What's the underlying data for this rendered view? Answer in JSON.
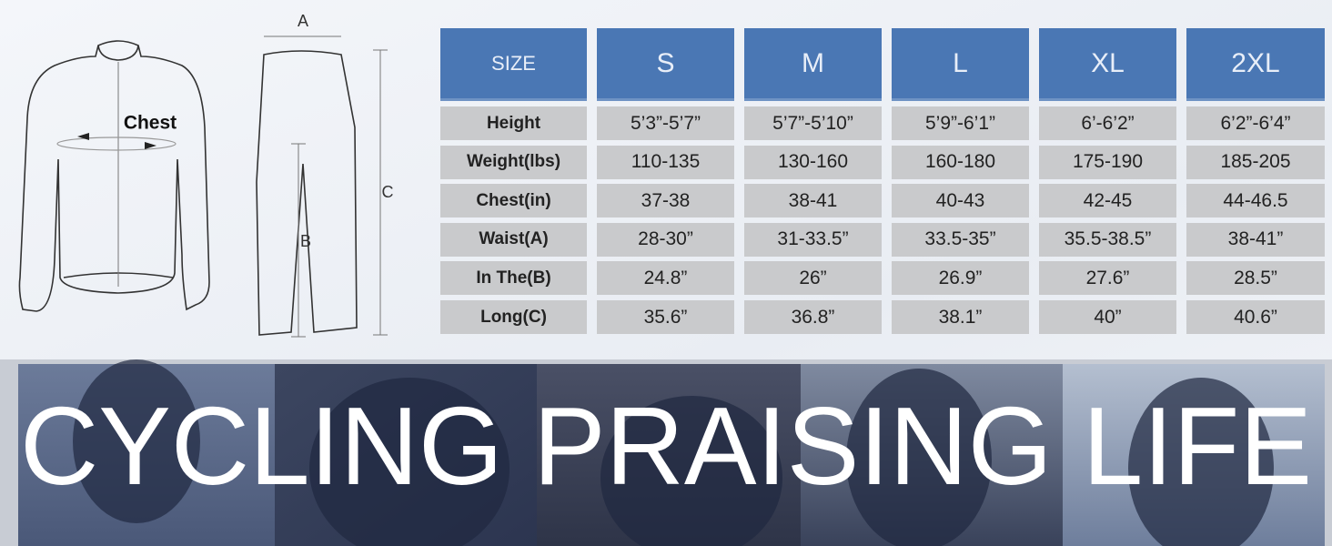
{
  "diagram": {
    "chest": "Chest",
    "a": "A",
    "b": "B",
    "c": "C"
  },
  "table": {
    "header": [
      "SIZE",
      "S",
      "M",
      "L",
      "XL",
      "2XL"
    ],
    "rows": [
      [
        "Height",
        "5’3”-5’7”",
        "5’7”-5’10”",
        "5’9”-6’1”",
        "6’-6’2”",
        "6’2”-6’4”"
      ],
      [
        "Weight(lbs)",
        "110-135",
        "130-160",
        "160-180",
        "175-190",
        "185-205"
      ],
      [
        "Chest(in)",
        "37-38",
        "38-41",
        "40-43",
        "42-45",
        "44-46.5"
      ],
      [
        "Waist(A)",
        "28-30”",
        "31-33.5”",
        "33.5-35”",
        "35.5-38.5”",
        "38-41”"
      ],
      [
        "In The(B)",
        "24.8”",
        "26”",
        "26.9”",
        "27.6”",
        "28.5”"
      ],
      [
        "Long(C)",
        "35.6”",
        "36.8”",
        "38.1”",
        "40”",
        "40.6”"
      ]
    ]
  },
  "banner": {
    "text": "CYCLING PRAISING LIFE"
  }
}
